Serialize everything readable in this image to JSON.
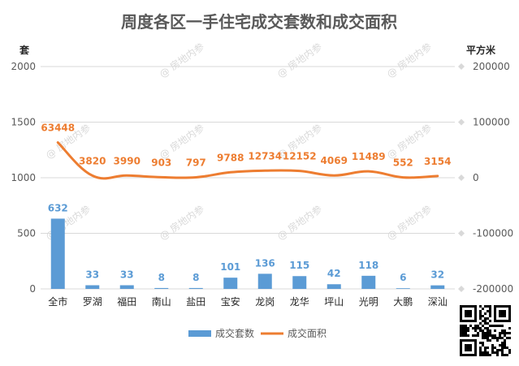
{
  "chart_data": {
    "type": "bar",
    "title": "周度各区一手住宅成交套数和成交面积",
    "left_unit": "套",
    "right_unit": "平方米",
    "categories": [
      "全市",
      "罗湖",
      "福田",
      "南山",
      "盐田",
      "宝安",
      "龙岗",
      "龙华",
      "坪山",
      "光明",
      "大鹏",
      "深汕"
    ],
    "series": [
      {
        "name": "成交套数",
        "type": "bar",
        "axis": "left",
        "color": "#5b9bd5",
        "values": [
          632,
          33,
          33,
          8,
          8,
          101,
          136,
          115,
          42,
          118,
          6,
          32
        ]
      },
      {
        "name": "成交面积",
        "type": "line",
        "axis": "right",
        "color": "#ed7d31",
        "values": [
          63448,
          3820,
          3990,
          903,
          797,
          9788,
          12734,
          12152,
          4069,
          11489,
          552,
          3154
        ]
      }
    ],
    "left_axis": {
      "ylim": [
        0,
        2000
      ],
      "ticks": [
        "0",
        "500",
        "1000",
        "1500",
        "2000"
      ]
    },
    "right_axis": {
      "ylim": [
        -200000,
        200000
      ],
      "ticks": [
        "-200000",
        "-100000",
        "0",
        "100000",
        "200000"
      ]
    },
    "grid": true,
    "legend_position": "bottom"
  },
  "watermark": "@ 房地内参"
}
